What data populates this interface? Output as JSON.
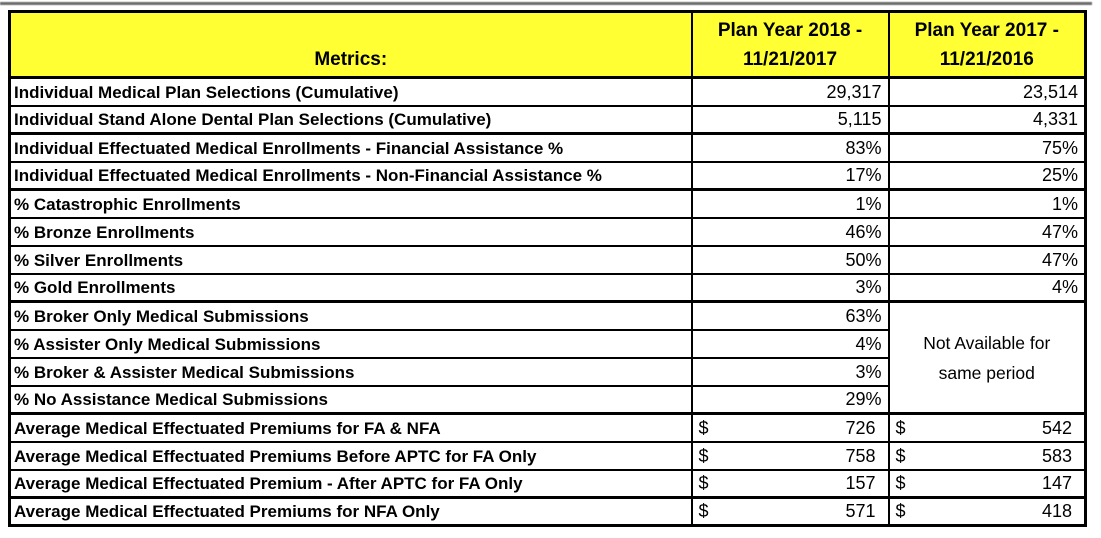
{
  "colors": {
    "header_bg": "#FFFF33",
    "border": "#000000",
    "text": "#000000"
  },
  "table": {
    "header": {
      "metrics": "Metrics:",
      "plan_year_2018": {
        "line1": "Plan Year 2018 -",
        "line2": "11/21/2017"
      },
      "plan_year_2017": {
        "line1": "Plan Year 2017 -",
        "line2": "11/21/2016"
      }
    },
    "not_available_note": "Not Available for same period",
    "rows": [
      {
        "label": "Individual Medical Plan Selections (Cumulative)",
        "py2018": "29,317",
        "py2017": "23,514",
        "format": "number"
      },
      {
        "label": "Individual Stand Alone Dental Plan Selections (Cumulative)",
        "py2018": "5,115",
        "py2017": "4,331",
        "format": "number"
      },
      {
        "label": "Individual Effectuated Medical Enrollments - Financial Assistance %",
        "py2018": "83%",
        "py2017": "75%",
        "format": "percent"
      },
      {
        "label": "Individual Effectuated Medical Enrollments - Non-Financial Assistance %",
        "py2018": "17%",
        "py2017": "25%",
        "format": "percent"
      },
      {
        "label": "% Catastrophic Enrollments",
        "py2018": "1%",
        "py2017": "1%",
        "format": "percent"
      },
      {
        "label": "% Bronze Enrollments",
        "py2018": "46%",
        "py2017": "47%",
        "format": "percent"
      },
      {
        "label": "% Silver Enrollments",
        "py2018": "50%",
        "py2017": "47%",
        "format": "percent"
      },
      {
        "label": "% Gold Enrollments",
        "py2018": "3%",
        "py2017": "4%",
        "format": "percent"
      },
      {
        "label": "% Broker Only Medical Submissions",
        "py2018": "63%",
        "py2017": null,
        "format": "percent"
      },
      {
        "label": "% Assister Only Medical Submissions",
        "py2018": "4%",
        "py2017": null,
        "format": "percent"
      },
      {
        "label": "% Broker & Assister Medical Submissions",
        "py2018": "3%",
        "py2017": null,
        "format": "percent"
      },
      {
        "label": "% No Assistance Medical Submissions",
        "py2018": "29%",
        "py2017": null,
        "format": "percent"
      },
      {
        "label": "Average Medical Effectuated Premiums for FA & NFA",
        "py2018": "726",
        "py2017": "542",
        "format": "currency",
        "currency_symbol": "$"
      },
      {
        "label": "Average Medical Effectuated Premiums Before APTC for FA Only",
        "py2018": "758",
        "py2017": "583",
        "format": "currency",
        "currency_symbol": "$"
      },
      {
        "label": "Average Medical Effectuated Premium - After APTC for FA Only",
        "py2018": "157",
        "py2017": "147",
        "format": "currency",
        "currency_symbol": "$"
      },
      {
        "label": "Average Medical Effectuated Premiums for NFA Only",
        "py2018": "571",
        "py2017": "418",
        "format": "currency",
        "currency_symbol": "$"
      }
    ]
  }
}
